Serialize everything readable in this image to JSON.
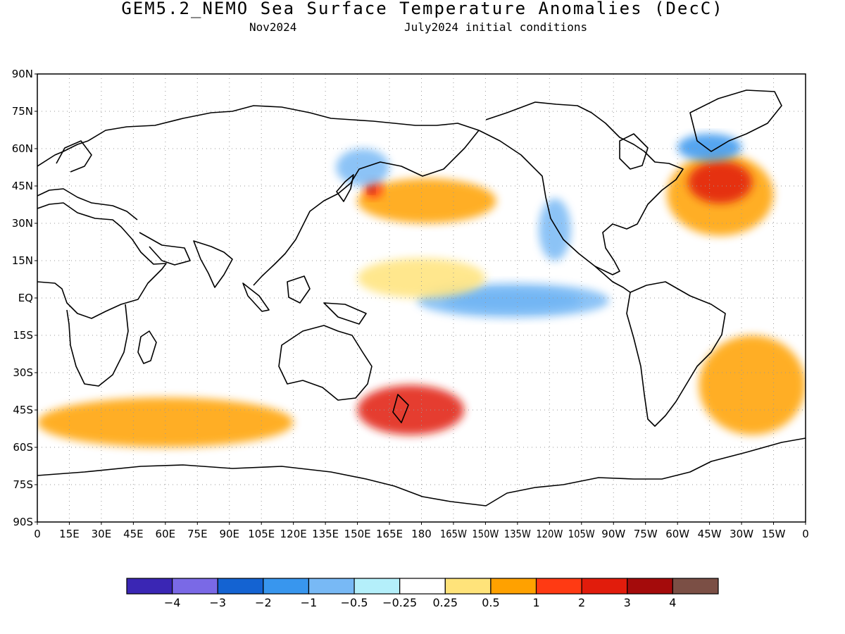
{
  "title": "GEM5.2_NEMO Sea Surface Temperature Anomalies (DecC)",
  "subtitle_left": "Nov2024",
  "subtitle_right": "July2024 initial conditions",
  "map": {
    "projection": "equirectangular",
    "lon_range": [
      0,
      360
    ],
    "lat_range": [
      -90,
      90
    ],
    "grid": "dotted",
    "coastline_color": "#000000",
    "lat_ticks": [
      {
        "lat": 90,
        "label": "90N"
      },
      {
        "lat": 75,
        "label": "75N"
      },
      {
        "lat": 60,
        "label": "60N"
      },
      {
        "lat": 45,
        "label": "45N"
      },
      {
        "lat": 30,
        "label": "30N"
      },
      {
        "lat": 15,
        "label": "15N"
      },
      {
        "lat": 0,
        "label": "EQ"
      },
      {
        "lat": -15,
        "label": "15S"
      },
      {
        "lat": -30,
        "label": "30S"
      },
      {
        "lat": -45,
        "label": "45S"
      },
      {
        "lat": -60,
        "label": "60S"
      },
      {
        "lat": -75,
        "label": "75S"
      },
      {
        "lat": -90,
        "label": "90S"
      }
    ],
    "lon_ticks": [
      {
        "lon": 0,
        "label": "0"
      },
      {
        "lon": 15,
        "label": "15E"
      },
      {
        "lon": 30,
        "label": "30E"
      },
      {
        "lon": 45,
        "label": "45E"
      },
      {
        "lon": 60,
        "label": "60E"
      },
      {
        "lon": 75,
        "label": "75E"
      },
      {
        "lon": 90,
        "label": "90E"
      },
      {
        "lon": 105,
        "label": "105E"
      },
      {
        "lon": 120,
        "label": "120E"
      },
      {
        "lon": 135,
        "label": "135E"
      },
      {
        "lon": 150,
        "label": "150E"
      },
      {
        "lon": 165,
        "label": "165E"
      },
      {
        "lon": 180,
        "label": "180"
      },
      {
        "lon": 195,
        "label": "165W"
      },
      {
        "lon": 210,
        "label": "150W"
      },
      {
        "lon": 225,
        "label": "135W"
      },
      {
        "lon": 240,
        "label": "120W"
      },
      {
        "lon": 255,
        "label": "105W"
      },
      {
        "lon": 270,
        "label": "90W"
      },
      {
        "lon": 285,
        "label": "75W"
      },
      {
        "lon": 300,
        "label": "60W"
      },
      {
        "lon": 315,
        "label": "45W"
      },
      {
        "lon": 330,
        "label": "30W"
      },
      {
        "lon": 345,
        "label": "15W"
      },
      {
        "lon": 360,
        "label": "0"
      }
    ]
  },
  "colorbar": {
    "colors": [
      "#3a26b4",
      "#7a69e6",
      "#1463d2",
      "#3896ee",
      "#78b9f5",
      "#b4effa",
      "#ffffff",
      "#ffe37a",
      "#ffa100",
      "#ff3a13",
      "#e11c0c",
      "#a40b0b",
      "#7b4f45"
    ],
    "labels": [
      "−4",
      "−3",
      "−2",
      "−1",
      "−0.5",
      "−0.25",
      "0.25",
      "0.5",
      "1",
      "2",
      "3",
      "4"
    ]
  },
  "anomaly_regions": [
    {
      "name": "equatorial-pacific-cold-tongue",
      "color": "#3896ee",
      "lon": [
        190,
        255
      ],
      "lat": [
        -5,
        3
      ]
    },
    {
      "name": "equatorial-pacific-cold-core",
      "color": "#78b9f5",
      "lon": [
        178,
        268
      ],
      "lat": [
        -8,
        6
      ]
    },
    {
      "name": "central-pacific-warm-band",
      "color": "#ffe37a",
      "lon": [
        150,
        210
      ],
      "lat": [
        0,
        16
      ]
    },
    {
      "name": "north-pacific-warm-blob",
      "color": "#ffa100",
      "lon": [
        150,
        215
      ],
      "lat": [
        30,
        48
      ]
    },
    {
      "name": "north-pacific-warm-core",
      "color": "#ff3a13",
      "lon": [
        153,
        162
      ],
      "lat": [
        40,
        48
      ]
    },
    {
      "name": "kuroshio-max",
      "color": "#a40b0b",
      "lon": [
        155,
        158
      ],
      "lat": [
        42,
        45
      ]
    },
    {
      "name": "gulf-stream-warm",
      "color": "#ffa100",
      "lon": [
        295,
        345
      ],
      "lat": [
        25,
        58
      ]
    },
    {
      "name": "gulf-stream-core",
      "color": "#e11c0c",
      "lon": [
        305,
        335
      ],
      "lat": [
        38,
        55
      ]
    },
    {
      "name": "southern-ocean-warm-band",
      "color": "#ffa100",
      "lon": [
        0,
        120
      ],
      "lat": [
        -60,
        -40
      ]
    },
    {
      "name": "tasman-sea-warm",
      "color": "#e11c0c",
      "lon": [
        150,
        200
      ],
      "lat": [
        -55,
        -35
      ]
    },
    {
      "name": "south-atlantic-warm",
      "color": "#ffa100",
      "lon": [
        310,
        360
      ],
      "lat": [
        -55,
        -15
      ]
    },
    {
      "name": "north-atlantic-subpolar-cold",
      "color": "#3896ee",
      "lon": [
        300,
        330
      ],
      "lat": [
        55,
        66
      ]
    },
    {
      "name": "california-current-cold",
      "color": "#78b9f5",
      "lon": [
        235,
        250
      ],
      "lat": [
        15,
        40
      ]
    },
    {
      "name": "kamchatka-cold",
      "color": "#78b9f5",
      "lon": [
        140,
        165
      ],
      "lat": [
        45,
        60
      ]
    }
  ]
}
